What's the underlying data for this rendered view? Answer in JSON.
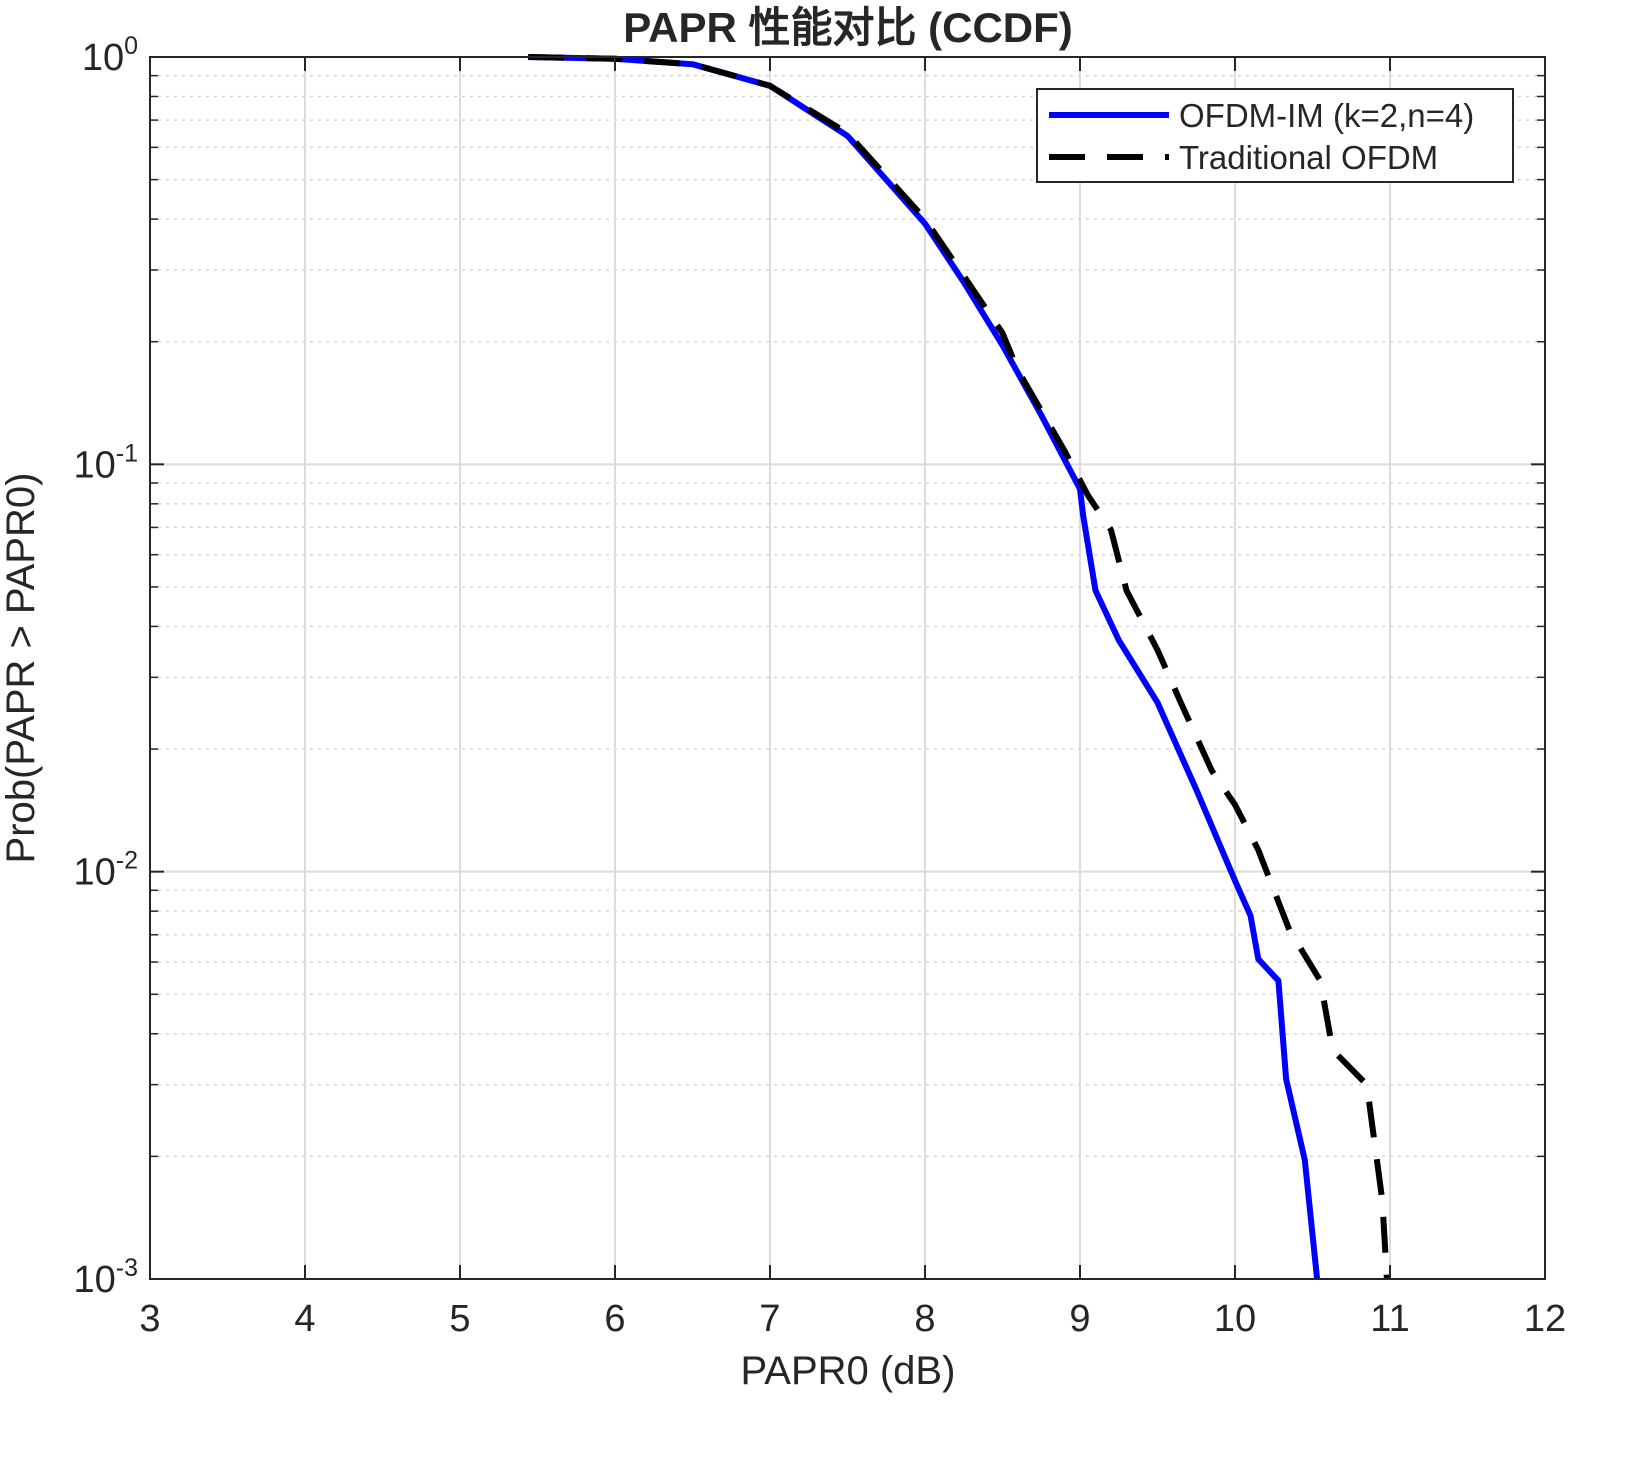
{
  "chart_data": {
    "type": "line",
    "title": "PAPR 性能对比 (CCDF)",
    "xlabel": "PAPR0 (dB)",
    "ylabel": "Prob(PAPR > PAPR0)",
    "xlim": [
      3,
      12
    ],
    "ylim": [
      0.001,
      1
    ],
    "yscale": "log",
    "grid": true,
    "minor_grid": true,
    "legend_position": "top-right",
    "xticks": [
      "3",
      "4",
      "5",
      "6",
      "7",
      "8",
      "9",
      "10",
      "11",
      "12"
    ],
    "yticks": [
      {
        "base": "10",
        "exp": "0"
      },
      {
        "base": "10",
        "exp": "-1"
      },
      {
        "base": "10",
        "exp": "-2"
      },
      {
        "base": "10",
        "exp": "-3"
      }
    ],
    "series": [
      {
        "name": "OFDM-IM (k=2,n=4)",
        "color": "#0000ff",
        "style": "solid",
        "x": [
          5.44,
          6.0,
          6.5,
          7.0,
          7.5,
          8.0,
          8.25,
          8.5,
          8.75,
          9.0,
          9.02,
          9.1,
          9.25,
          9.5,
          9.75,
          10.0,
          10.1,
          10.15,
          10.28,
          10.33,
          10.45,
          10.53
        ],
        "y": [
          1.0,
          0.99,
          0.96,
          0.85,
          0.64,
          0.39,
          0.28,
          0.196,
          0.132,
          0.087,
          0.075,
          0.049,
          0.037,
          0.026,
          0.0159,
          0.0095,
          0.0078,
          0.0061,
          0.0054,
          0.0031,
          0.00196,
          0.001
        ]
      },
      {
        "name": "Traditional OFDM",
        "color": "#000000",
        "style": "dashed",
        "x": [
          5.44,
          6.0,
          6.5,
          7.0,
          7.5,
          8.0,
          8.25,
          8.5,
          8.6,
          8.9,
          9.05,
          9.2,
          9.3,
          9.5,
          9.65,
          9.85,
          10.0,
          10.15,
          10.35,
          10.55,
          10.63,
          10.85,
          10.95,
          10.98
        ],
        "y": [
          1.0,
          0.99,
          0.96,
          0.85,
          0.65,
          0.4,
          0.29,
          0.21,
          0.17,
          0.108,
          0.084,
          0.069,
          0.049,
          0.035,
          0.026,
          0.0177,
          0.0146,
          0.0113,
          0.0072,
          0.0054,
          0.00365,
          0.003,
          0.00156,
          0.001
        ]
      }
    ]
  }
}
